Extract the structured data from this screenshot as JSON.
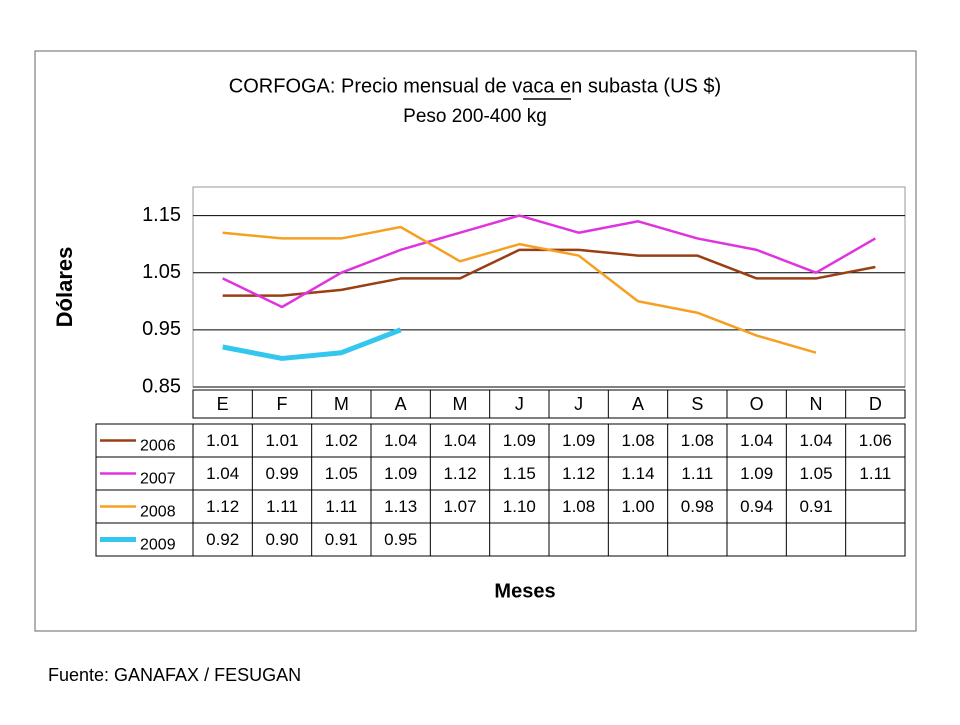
{
  "chart_data": {
    "type": "line",
    "title": "CORFOGA: Precio mensual de vaca en subasta (US $)",
    "subtitle": "Peso 200-400 kg",
    "y_label": "Dólares",
    "x_label": "Meses",
    "source": "Fuente: GANAFAX / FESUGAN",
    "categories": [
      "E",
      "F",
      "M",
      "A",
      "M",
      "J",
      "J",
      "A",
      "S",
      "O",
      "N",
      "D"
    ],
    "ylim": [
      0.85,
      1.2
    ],
    "yticks": [
      0.85,
      0.95,
      1.05,
      1.15
    ],
    "grid": true,
    "series": [
      {
        "name": "2006",
        "color": "#993f14",
        "width": 2.5,
        "values": [
          1.01,
          1.01,
          1.02,
          1.04,
          1.04,
          1.09,
          1.09,
          1.08,
          1.08,
          1.04,
          1.04,
          1.06
        ],
        "value_labels": [
          "1.01",
          "1.01",
          "1.02",
          "1.04",
          "1.04",
          "1.09",
          "1.09",
          "1.08",
          "1.08",
          "1.04",
          "1.04",
          "1.06"
        ]
      },
      {
        "name": "2007",
        "color": "#e033e0",
        "width": 2.5,
        "values": [
          1.04,
          0.99,
          1.05,
          1.09,
          1.12,
          1.15,
          1.12,
          1.14,
          1.11,
          1.09,
          1.05,
          1.11
        ],
        "value_labels": [
          "1.04",
          "0.99",
          "1.05",
          "1.09",
          "1.12",
          "1.15",
          "1.12",
          "1.14",
          "1.11",
          "1.09",
          "1.05",
          "1.11"
        ]
      },
      {
        "name": "2008",
        "color": "#f5a023",
        "width": 2.5,
        "values": [
          1.12,
          1.11,
          1.11,
          1.13,
          1.07,
          1.1,
          1.08,
          1.0,
          0.98,
          0.94,
          0.91,
          null
        ],
        "value_labels": [
          "1.12",
          "1.11",
          "1.11",
          "1.13",
          "1.07",
          "1.10",
          "1.08",
          "1.00",
          "0.98",
          "0.94",
          "0.91",
          null
        ]
      },
      {
        "name": "2009",
        "color": "#33c6ee",
        "width": 5,
        "values": [
          0.92,
          0.9,
          0.91,
          0.95,
          null,
          null,
          null,
          null,
          null,
          null,
          null,
          null
        ],
        "value_labels": [
          "0.92",
          "0.90",
          "0.91",
          "0.95",
          null,
          null,
          null,
          null,
          null,
          null,
          null,
          null
        ]
      }
    ]
  }
}
